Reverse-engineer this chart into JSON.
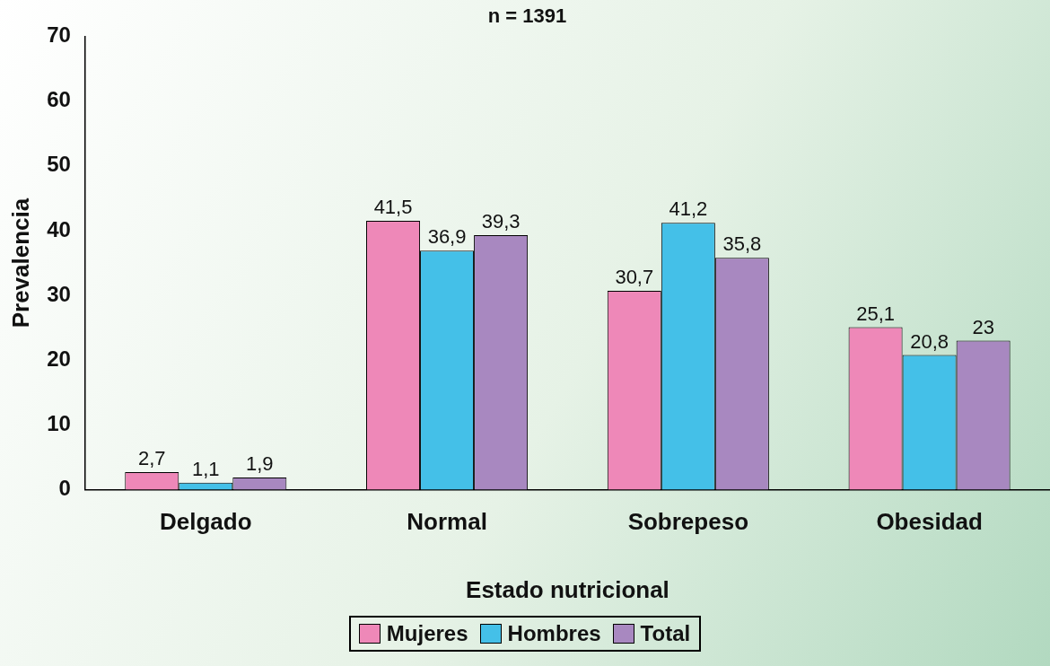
{
  "chart_data": {
    "type": "bar",
    "title": "n = 1391",
    "xlabel": "Estado nutricional",
    "ylabel": "Prevalencia",
    "categories": [
      "Delgado",
      "Normal",
      "Sobrepeso",
      "Obesidad"
    ],
    "series": [
      {
        "name": "Mujeres",
        "color": "#ee88b8",
        "values": [
          2.7,
          41.5,
          30.7,
          25.1
        ],
        "value_labels": [
          "2,7",
          "41,5",
          "30,7",
          "25,1"
        ]
      },
      {
        "name": "Hombres",
        "color": "#44c0e8",
        "values": [
          1.1,
          36.9,
          41.2,
          20.8
        ],
        "value_labels": [
          "1,1",
          "36,9",
          "41,2",
          "20,8"
        ]
      },
      {
        "name": "Total",
        "color": "#a888c0",
        "values": [
          1.9,
          39.3,
          35.8,
          23
        ],
        "value_labels": [
          "1,9",
          "39,3",
          "35,8",
          "23"
        ]
      }
    ],
    "ylim": [
      0,
      70
    ],
    "yticks": [
      0,
      10,
      20,
      30,
      40,
      50,
      60,
      70
    ],
    "grid": false,
    "legend": "bottom"
  }
}
